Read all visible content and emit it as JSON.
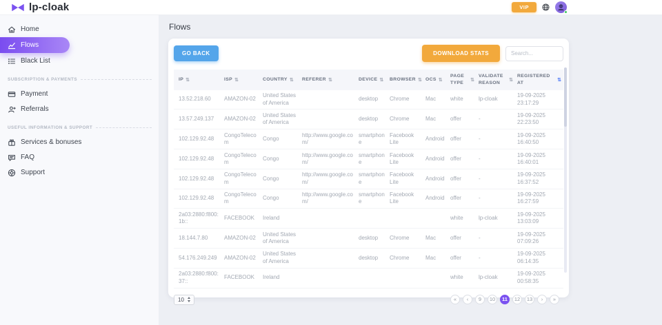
{
  "brand": {
    "name": "lp-cloak"
  },
  "header": {
    "vip_label": "VIP"
  },
  "sidebar": {
    "sections": [
      {
        "label": "",
        "items": [
          {
            "label": "Home",
            "icon": "home-icon",
            "active": false
          },
          {
            "label": "Flows",
            "icon": "flows-icon",
            "active": true
          },
          {
            "label": "Black List",
            "icon": "blacklist-icon",
            "active": false
          }
        ]
      },
      {
        "label": "SUBSCRIPTION & PAYMENTS",
        "items": [
          {
            "label": "Payment",
            "icon": "payment-icon",
            "active": false
          },
          {
            "label": "Referrals",
            "icon": "referrals-icon",
            "active": false
          }
        ]
      },
      {
        "label": "USEFUL INFORMATION & SUPPORT",
        "items": [
          {
            "label": "Services & bonuses",
            "icon": "services-icon",
            "active": false
          },
          {
            "label": "FAQ",
            "icon": "faq-icon",
            "active": false
          },
          {
            "label": "Support",
            "icon": "support-icon",
            "active": false
          }
        ]
      }
    ]
  },
  "page": {
    "title": "Flows"
  },
  "toolbar": {
    "go_back_label": "GO BACK",
    "download_stats_label": "DOWNLOAD STATS",
    "search_placeholder": "Search..."
  },
  "table": {
    "columns": [
      "IP",
      "ISP",
      "COUNTRY",
      "REFERER",
      "DEVICE",
      "BROWSER",
      "OCS",
      "PAGE TYPE",
      "VALIDATE REASON",
      "REGISTERED AT"
    ],
    "sorted_column": "REGISTERED AT",
    "sort_glyph": "⇅",
    "rows": [
      [
        "13.52.218.60",
        "AMAZON-02",
        "United States of America",
        "",
        "desktop",
        "Chrome",
        "Mac",
        "white",
        "lp-cloak",
        "19-09-2025 23:17:29"
      ],
      [
        "13.57.249.137",
        "AMAZON-02",
        "United States of America",
        "",
        "desktop",
        "Chrome",
        "Mac",
        "offer",
        "-",
        "19-09-2025 22:23:50"
      ],
      [
        "102.129.92.48",
        "CongoTelecom",
        "Congo",
        "http://www.google.com/",
        "smartphone",
        "Facebook Lite",
        "Android",
        "offer",
        "-",
        "19-09-2025 16:40:50"
      ],
      [
        "102.129.92.48",
        "CongoTelecom",
        "Congo",
        "http://www.google.com/",
        "smartphone",
        "Facebook Lite",
        "Android",
        "offer",
        "-",
        "19-09-2025 16:40:01"
      ],
      [
        "102.129.92.48",
        "CongoTelecom",
        "Congo",
        "http://www.google.com/",
        "smartphone",
        "Facebook Lite",
        "Android",
        "offer",
        "-",
        "19-09-2025 16:37:52"
      ],
      [
        "102.129.92.48",
        "CongoTelecom",
        "Congo",
        "http://www.google.com/",
        "smartphone",
        "Facebook Lite",
        "Android",
        "offer",
        "-",
        "19-09-2025 16:27:59"
      ],
      [
        "2a03:2880:f800:1b::",
        "FACEBOOK",
        "Ireland",
        "",
        "",
        "",
        "",
        "white",
        "lp-cloak",
        "19-09-2025 13:03:09"
      ],
      [
        "18.144.7.80",
        "AMAZON-02",
        "United States of America",
        "",
        "desktop",
        "Chrome",
        "Mac",
        "offer",
        "-",
        "19-09-2025 07:09:26"
      ],
      [
        "54.176.249.249",
        "AMAZON-02",
        "United States of America",
        "",
        "desktop",
        "Chrome",
        "Mac",
        "offer",
        "-",
        "19-09-2025 06:14:35"
      ],
      [
        "2a03:2880:f800:37::",
        "FACEBOOK",
        "Ireland",
        "",
        "",
        "",
        "",
        "white",
        "lp-cloak",
        "19-09-2025 00:58:35"
      ]
    ]
  },
  "pagination": {
    "page_size": "10",
    "first_label": "«",
    "prev_label": "‹",
    "next_label": "›",
    "last_label": "»",
    "pages": [
      "9",
      "10",
      "11",
      "12",
      "13"
    ],
    "active_page": "11"
  },
  "colors": {
    "brand_purple": "#7B52F0",
    "accent_orange": "#F2A93C",
    "accent_blue": "#54A5EA",
    "active_sort_blue": "#4D79F6",
    "online_green": "#3FC95C"
  }
}
